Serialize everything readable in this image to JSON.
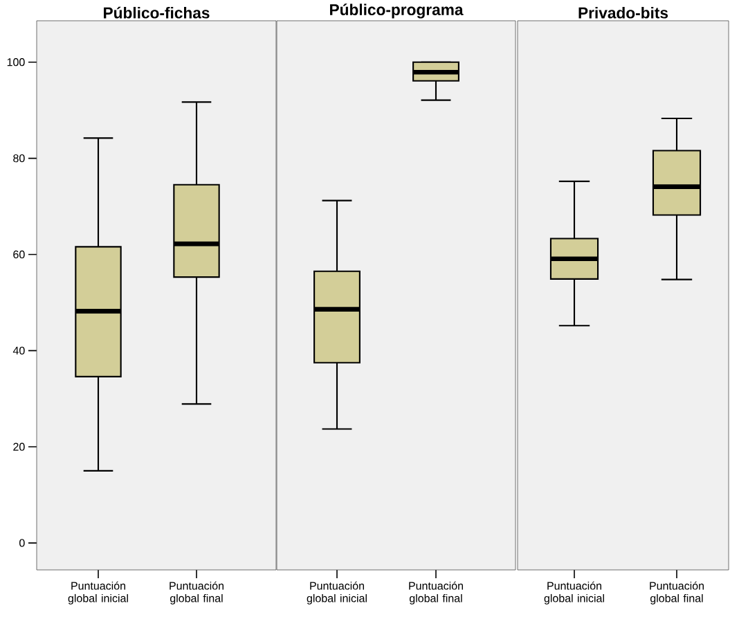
{
  "chart_data": [
    {
      "type": "box",
      "title": "Público-fichas",
      "categories": [
        "Puntuación global inicial",
        "Puntuación global final"
      ],
      "color": "#d3ce98",
      "ylim": [
        -5.6,
        108.6
      ],
      "yticks": [
        0,
        20,
        40,
        60,
        80,
        100
      ],
      "boxes": [
        {
          "low": 15.0,
          "q1": 34.6,
          "median": 48.2,
          "q3": 61.6,
          "high": 84.2
        },
        {
          "low": 28.9,
          "q1": 55.3,
          "median": 62.2,
          "q3": 74.5,
          "high": 91.7
        }
      ]
    },
    {
      "type": "box",
      "title": "Público-programa",
      "categories": [
        "Puntuación global inicial",
        "Puntuación global final"
      ],
      "color": "#d3ce98",
      "ylim": [
        -5.6,
        108.6
      ],
      "tick_labels": "x",
      "boxes": [
        {
          "low": 23.7,
          "q1": 37.5,
          "median": 48.6,
          "q3": 56.5,
          "high": 71.2
        },
        {
          "low": 92.1,
          "q1": 96.1,
          "median": 97.9,
          "q3": 100,
          "high": 100
        }
      ]
    },
    {
      "type": "box",
      "title": "Privado-bits",
      "categories": [
        "Puntuación global inicial",
        "Puntuación global final"
      ],
      "color": "#d3ce98",
      "ylim": [
        -5.6,
        108.6
      ],
      "tick_labels": "x",
      "boxes": [
        {
          "low": 45.2,
          "q1": 54.9,
          "median": 59.1,
          "q3": 63.3,
          "high": 75.2
        },
        {
          "low": 54.8,
          "q1": 68.2,
          "median": 74.1,
          "q3": 81.6,
          "high": 88.3
        }
      ]
    }
  ]
}
